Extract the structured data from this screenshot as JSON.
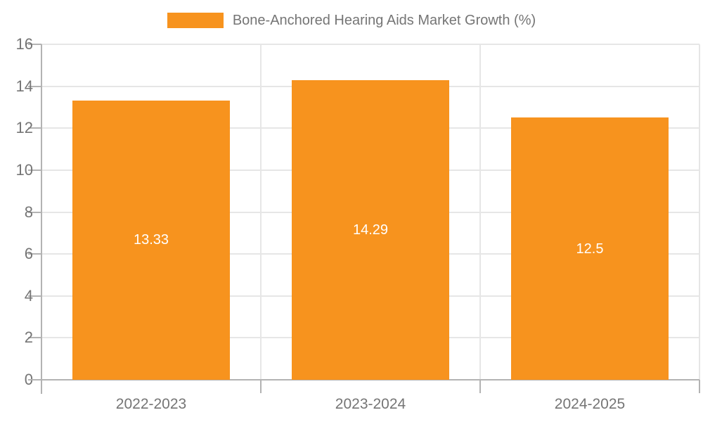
{
  "chart_data": {
    "type": "bar",
    "title": "Bone-Anchored Hearing Aids Market Growth (%)",
    "legend_position": "top",
    "legend": [
      {
        "label": "Bone-Anchored Hearing Aids Market Growth (%)",
        "color": "#F7931E"
      }
    ],
    "categories": [
      "2022-2023",
      "2023-2024",
      "2024-2025"
    ],
    "series": [
      {
        "name": "Bone-Anchored Hearing Aids Market Growth (%)",
        "values": [
          13.33,
          14.29,
          12.5
        ],
        "display_labels": [
          "13.33",
          "14.29",
          "12.5"
        ]
      }
    ],
    "xlabel": "",
    "ylabel": "",
    "ylim": [
      0,
      16
    ],
    "yticks": [
      0,
      2,
      4,
      6,
      8,
      10,
      12,
      14,
      16
    ],
    "grid": true,
    "colors": {
      "bar": "#F7931E",
      "bar_label": "#FFFFFF",
      "axis_text": "#757575",
      "grid_line": "#E6E6E6",
      "axis_line": "#B3B3B3",
      "background": "#FFFFFF"
    }
  }
}
